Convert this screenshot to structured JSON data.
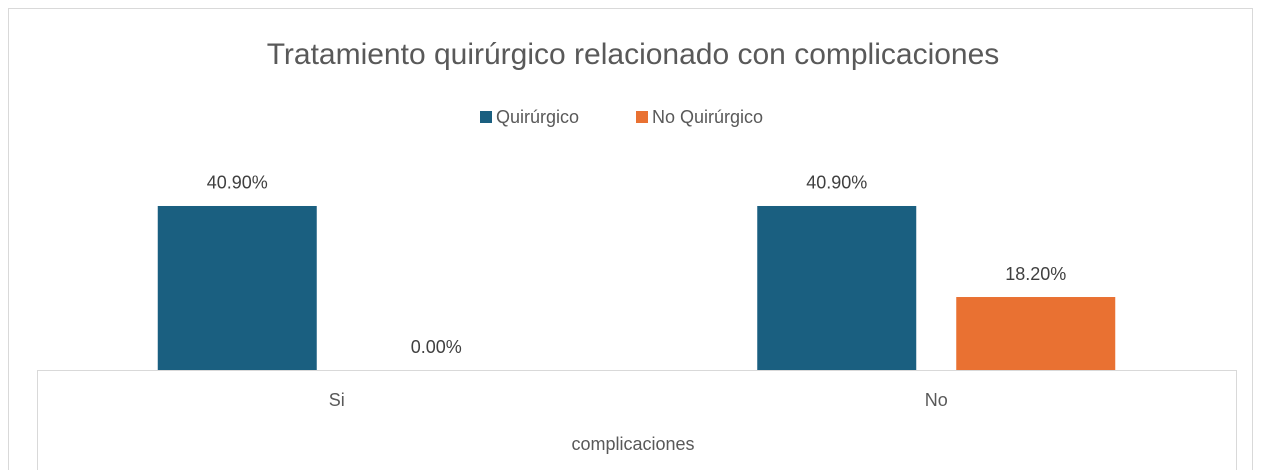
{
  "chart_data": {
    "type": "bar",
    "title": "Tratamiento quirúrgico relacionado con complicaciones",
    "x_label": "complicaciones",
    "categories": [
      "Si",
      "No"
    ],
    "series": [
      {
        "name": "Quirúrgico",
        "color": "#1a5f80",
        "values": [
          40.9,
          40.9
        ],
        "value_labels": [
          "40.90%",
          "40.90%"
        ]
      },
      {
        "name": "No Quirúrgico",
        "color": "#e97132",
        "values": [
          0,
          18.2
        ],
        "value_labels": [
          "0.00%",
          "18.20%"
        ]
      }
    ],
    "legend": "top"
  }
}
